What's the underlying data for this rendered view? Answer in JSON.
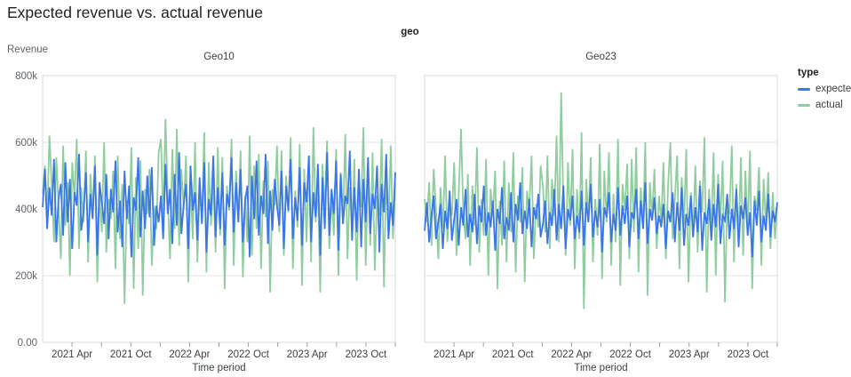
{
  "page": {
    "title": "Expected revenue vs. actual revenue"
  },
  "facet_header": "geo",
  "y_axis_title": "Revenue",
  "x_axis_title": "Time period",
  "legend": {
    "title": "type",
    "items": [
      {
        "label": "expected",
        "color": "#3a76e8"
      },
      {
        "label": "actual",
        "color": "#8fcd9f"
      }
    ]
  },
  "colors": {
    "expected_line": "#3a76e8",
    "actual_line": "#8fcd9f",
    "gridline": "#e4e4e7",
    "plot_border": "#d6d9dc",
    "tick": "#9aa0a6",
    "tick_label": "#3c4043",
    "y_label": "#5f6368"
  },
  "chart_data": [
    {
      "type": "line",
      "facet": "Geo10",
      "title": "Geo10",
      "xlabel": "Time period",
      "ylabel": "Revenue",
      "x_range": [
        "2021 Jan",
        "2023 Dec"
      ],
      "x_unit": "week",
      "ylim_k": [
        0,
        800
      ],
      "y_values_unit": "thousands",
      "grid": true,
      "y_ticks": [
        {
          "value_k": 0,
          "label": "0.00"
        },
        {
          "value_k": 200,
          "label": "200k"
        },
        {
          "value_k": 400,
          "label": "400k"
        },
        {
          "value_k": 600,
          "label": "600k"
        },
        {
          "value_k": 800,
          "label": "800k"
        }
      ],
      "x_ticks": [
        {
          "month": 3,
          "label": "2021 Apr"
        },
        {
          "month": 6,
          "label": ""
        },
        {
          "month": 9,
          "label": "2021 Oct"
        },
        {
          "month": 12,
          "label": ""
        },
        {
          "month": 15,
          "label": "2022 Apr"
        },
        {
          "month": 18,
          "label": ""
        },
        {
          "month": 21,
          "label": "2022 Oct"
        },
        {
          "month": 24,
          "label": ""
        },
        {
          "month": 27,
          "label": "2023 Apr"
        },
        {
          "month": 30,
          "label": ""
        },
        {
          "month": 33,
          "label": "2023 Oct"
        },
        {
          "month": 36,
          "label": ""
        }
      ],
      "series": [
        {
          "name": "expected",
          "color": "#3a76e8",
          "values_k": [
            405,
            520,
            340,
            465,
            380,
            550,
            300,
            430,
            475,
            320,
            540,
            360,
            490,
            280,
            450,
            410,
            565,
            335,
            395,
            510,
            300,
            445,
            370,
            530,
            260,
            480,
            420,
            355,
            505,
            310,
            460,
            390,
            545,
            330,
            425,
            285,
            515,
            370,
            470,
            255,
            435,
            395,
            555,
            315,
            455,
            340,
            500,
            375,
            525,
            290,
            410,
            360,
            440,
            310,
            535,
            385,
            460,
            295,
            505,
            350,
            570,
            325,
            415,
            475,
            280,
            530,
            395,
            450,
            305,
            495,
            355,
            540,
            270,
            430,
            380,
            560,
            315,
            465,
            340,
            510,
            290,
            445,
            405,
            555,
            330,
            480,
            360,
            520,
            300,
            425,
            470,
            255,
            500,
            370,
            545,
            320,
            440,
            385,
            565,
            295,
            455,
            335,
            490,
            410,
            350,
            515,
            280,
            470,
            395,
            550,
            310,
            435,
            365,
            525,
            290,
            480,
            420,
            560,
            300,
            450,
            375,
            535,
            260,
            495,
            340,
            570,
            320,
            460,
            385,
            545,
            275,
            505,
            355,
            440,
            415,
            575,
            305,
            465,
            330,
            520,
            285,
            490,
            360,
            555,
            325,
            445,
            400,
            530,
            270,
            475,
            390,
            565,
            310,
            420,
            350,
            510
          ]
        },
        {
          "name": "actual",
          "color": "#8fcd9f",
          "values_k": [
            445,
            530,
            380,
            620,
            470,
            300,
            555,
            410,
            250,
            590,
            350,
            480,
            200,
            540,
            430,
            610,
            280,
            465,
            360,
            575,
            240,
            505,
            390,
            560,
            180,
            450,
            330,
            600,
            270,
            430,
            370,
            515,
            220,
            560,
            310,
            475,
            115,
            425,
            355,
            585,
            160,
            495,
            280,
            545,
            140,
            460,
            385,
            520,
            230,
            410,
            340,
            570,
            610,
            360,
            670,
            430,
            250,
            580,
            340,
            640,
            290,
            520,
            400,
            560,
            180,
            480,
            310,
            600,
            240,
            450,
            380,
            630,
            210,
            540,
            350,
            490,
            270,
            585,
            320,
            555,
            160,
            470,
            395,
            610,
            230,
            515,
            365,
            575,
            195,
            440,
            300,
            620,
            260,
            530,
            340,
            565,
            220,
            485,
            375,
            545,
            150,
            460,
            410,
            590,
            330,
            575,
            260,
            500,
            390,
            615,
            220,
            455,
            345,
            595,
            170,
            520,
            300,
            560,
            240,
            645,
            360,
            480,
            150,
            535,
            395,
            605,
            280,
            445,
            320,
            580,
            200,
            510,
            370,
            625,
            250,
            465,
            335,
            550,
            185,
            490,
            405,
            645,
            230,
            525,
            290,
            570,
            215,
            440,
            380,
            610,
            165,
            505,
            350,
            590,
            310,
            475
          ]
        }
      ]
    },
    {
      "type": "line",
      "facet": "Geo23",
      "title": "Geo23",
      "xlabel": "Time period",
      "ylabel": "Revenue",
      "x_range": [
        "2021 Jan",
        "2023 Dec"
      ],
      "x_unit": "week",
      "ylim_k": [
        0,
        800
      ],
      "y_values_unit": "thousands",
      "grid": true,
      "y_ticks": [
        {
          "value_k": 0,
          "label": "0.00"
        },
        {
          "value_k": 200,
          "label": "200k"
        },
        {
          "value_k": 400,
          "label": "400k"
        },
        {
          "value_k": 600,
          "label": "600k"
        },
        {
          "value_k": 800,
          "label": "800k"
        }
      ],
      "x_ticks": [
        {
          "month": 3,
          "label": "2021 Apr"
        },
        {
          "month": 6,
          "label": ""
        },
        {
          "month": 9,
          "label": "2021 Oct"
        },
        {
          "month": 12,
          "label": ""
        },
        {
          "month": 15,
          "label": "2022 Apr"
        },
        {
          "month": 18,
          "label": ""
        },
        {
          "month": 21,
          "label": "2022 Oct"
        },
        {
          "month": 24,
          "label": ""
        },
        {
          "month": 27,
          "label": "2023 Apr"
        },
        {
          "month": 30,
          "label": ""
        },
        {
          "month": 33,
          "label": "2023 Oct"
        },
        {
          "month": 36,
          "label": ""
        }
      ],
      "series": [
        {
          "name": "expected",
          "color": "#3a76e8",
          "values_k": [
            335,
            420,
            300,
            380,
            440,
            310,
            360,
            415,
            280,
            395,
            340,
            455,
            305,
            370,
            430,
            290,
            405,
            350,
            460,
            315,
            385,
            330,
            445,
            295,
            410,
            360,
            470,
            320,
            390,
            345,
            425,
            275,
            400,
            355,
            465,
            310,
            375,
            335,
            450,
            300,
            415,
            365,
            480,
            325,
            395,
            340,
            430,
            285,
            405,
            370,
            445,
            315,
            355,
            425,
            295,
            390,
            350,
            460,
            305,
            415,
            340,
            470,
            280,
            400,
            365,
            440,
            310,
            380,
            330,
            455,
            290,
            420,
            360,
            475,
            315,
            395,
            345,
            430,
            270,
            405,
            375,
            450,
            300,
            385,
            335,
            465,
            320,
            410,
            355,
            440,
            285,
            390,
            370,
            460,
            310,
            425,
            340,
            480,
            295,
            400,
            365,
            435,
            325,
            380,
            345,
            415,
            280,
            395,
            360,
            450,
            300,
            420,
            335,
            465,
            290,
            385,
            350,
            440,
            315,
            405,
            330,
            470,
            275,
            390,
            355,
            430,
            305,
            415,
            345,
            475,
            295,
            380,
            365,
            445,
            310,
            400,
            340,
            460,
            285,
            410,
            370,
            435,
            320,
            390,
            255,
            425,
            350,
            455,
            300,
            380,
            335,
            445,
            315,
            395,
            360,
            420
          ]
        },
        {
          "name": "actual",
          "color": "#8fcd9f",
          "values_k": [
            430,
            360,
            480,
            290,
            520,
            400,
            250,
            465,
            340,
            560,
            300,
            420,
            380,
            540,
            260,
            445,
            640,
            390,
            310,
            505,
            230,
            470,
            350,
            585,
            270,
            430,
            320,
            550,
            200,
            460,
            380,
            515,
            160,
            425,
            290,
            545,
            240,
            480,
            330,
            570,
            210,
            440,
            360,
            525,
            180,
            455,
            395,
            560,
            250,
            415,
            345,
            530,
            470,
            330,
            560,
            280,
            490,
            380,
            620,
            300,
            750,
            420,
            260,
            540,
            350,
            580,
            220,
            460,
            310,
            630,
            100,
            490,
            370,
            555,
            240,
            430,
            320,
            595,
            190,
            515,
            360,
            570,
            230,
            445,
            300,
            610,
            170,
            475,
            395,
            535,
            250,
            550,
            330,
            585,
            210,
            465,
            340,
            600,
            140,
            480,
            375,
            520,
            280,
            440,
            360,
            540,
            250,
            470,
            600,
            310,
            430,
            560,
            220,
            495,
            350,
            580,
            180,
            450,
            320,
            530,
            270,
            485,
            390,
            615,
            150,
            460,
            340,
            570,
            200,
            505,
            365,
            545,
            120,
            430,
            385,
            590,
            240,
            475,
            300,
            555,
            260,
            515,
            335,
            575,
            160,
            440,
            395,
            525,
            230,
            490,
            355,
            510,
            280,
            450,
            310,
            410
          ]
        }
      ]
    }
  ]
}
